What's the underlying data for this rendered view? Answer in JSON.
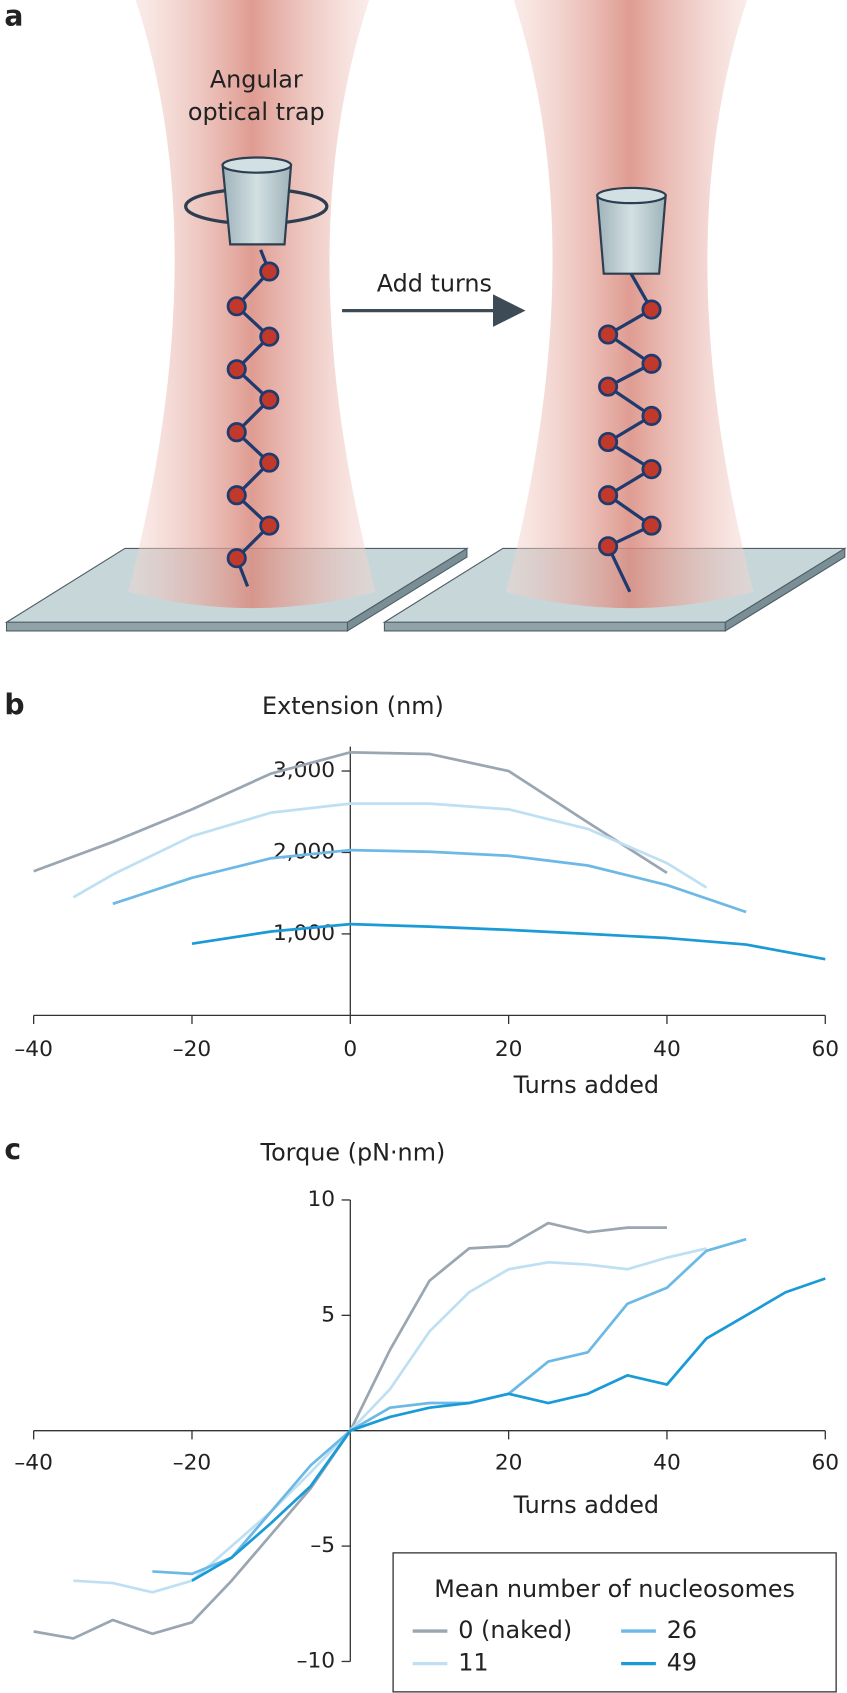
{
  "panel_labels": [
    "a",
    "b",
    "c"
  ],
  "illustration": {
    "trap_label": [
      "Angular",
      "optical trap"
    ],
    "arrow_label": "Add turns"
  },
  "chart_data": [
    {
      "type": "line",
      "ylabel": "Extension (nm)",
      "xlabel": "Turns added",
      "xlim": [
        -40,
        60
      ],
      "xticks": [
        {
          "value": -40,
          "label": "–40"
        },
        {
          "value": -20,
          "label": "–20"
        },
        0,
        20,
        40,
        60
      ],
      "ylim": [
        0,
        3300
      ],
      "yticks": [
        {
          "value": 1000,
          "label": "1,000"
        },
        {
          "value": 2000,
          "label": "2,000"
        },
        {
          "value": 3000,
          "label": "3,000"
        }
      ],
      "series": [
        {
          "color": "#9aa6b1",
          "x": [
            -40,
            -30,
            -20,
            -10,
            0,
            10,
            20,
            30,
            40
          ],
          "values": [
            1770,
            2130,
            2530,
            2970,
            3230,
            3210,
            3000,
            2370,
            1750
          ]
        },
        {
          "color": "#bfe0f3",
          "x": [
            -35,
            -30,
            -20,
            -10,
            0,
            10,
            20,
            30,
            40,
            45
          ],
          "values": [
            1450,
            1730,
            2200,
            2490,
            2600,
            2600,
            2530,
            2290,
            1870,
            1570
          ]
        },
        {
          "color": "#6cb9e5",
          "x": [
            -30,
            -20,
            -10,
            0,
            10,
            20,
            30,
            40,
            50
          ],
          "values": [
            1370,
            1690,
            1930,
            2030,
            2010,
            1960,
            1840,
            1600,
            1270
          ]
        },
        {
          "color": "#1a9ad6",
          "x": [
            -20,
            -10,
            0,
            10,
            20,
            30,
            40,
            50,
            60
          ],
          "values": [
            880,
            1030,
            1120,
            1090,
            1050,
            1000,
            950,
            870,
            690
          ]
        }
      ]
    },
    {
      "type": "line",
      "ylabel": "Torque (pN·nm)",
      "xlabel": "Turns added",
      "xlim": [
        -40,
        60
      ],
      "xticks": [
        {
          "value": -40,
          "label": "–40"
        },
        {
          "value": -20,
          "label": "–20"
        },
        20,
        40,
        60
      ],
      "ylim": [
        -10,
        10
      ],
      "yticks": [
        {
          "value": -10,
          "label": "–10"
        },
        {
          "value": -5,
          "label": "–5"
        },
        5,
        10
      ],
      "legend_title": "Mean number of nucleosomes",
      "legend": "lower right",
      "series": [
        {
          "name": "0 (naked)",
          "color": "#9aa6b1",
          "x": [
            -40,
            -35,
            -30,
            -25,
            -20,
            -15,
            -10,
            -5,
            0,
            5,
            10,
            15,
            20,
            25,
            30,
            35,
            40
          ],
          "values": [
            -8.7,
            -9.0,
            -8.2,
            -8.8,
            -8.3,
            -6.5,
            -4.5,
            -2.5,
            0,
            3.5,
            6.5,
            7.9,
            8.0,
            9.0,
            8.6,
            8.8,
            8.8
          ]
        },
        {
          "name": "11",
          "color": "#bfe0f3",
          "x": [
            -35,
            -30,
            -25,
            -20,
            -15,
            -10,
            -5,
            0,
            5,
            10,
            15,
            20,
            25,
            30,
            35,
            40,
            45
          ],
          "values": [
            -6.5,
            -6.6,
            -7.0,
            -6.5,
            -5.0,
            -3.5,
            -1.8,
            0,
            1.8,
            4.3,
            6.0,
            7.0,
            7.3,
            7.2,
            7.0,
            7.5,
            7.9
          ]
        },
        {
          "name": "26",
          "color": "#6cb9e5",
          "x": [
            -25,
            -20,
            -15,
            -10,
            -5,
            0,
            5,
            10,
            15,
            20,
            25,
            30,
            35,
            40,
            45,
            50
          ],
          "values": [
            -6.1,
            -6.2,
            -5.5,
            -3.5,
            -1.5,
            0,
            1.0,
            1.2,
            1.2,
            1.6,
            3.0,
            3.4,
            5.5,
            6.2,
            7.8,
            8.3
          ]
        },
        {
          "name": "49",
          "color": "#1a9ad6",
          "x": [
            -20,
            -15,
            -10,
            -5,
            0,
            5,
            10,
            15,
            20,
            25,
            30,
            35,
            40,
            45,
            50,
            55,
            60
          ],
          "values": [
            -6.5,
            -5.5,
            -4.0,
            -2.4,
            0,
            0.6,
            1.0,
            1.2,
            1.6,
            1.2,
            1.6,
            2.4,
            2.0,
            4.0,
            5.0,
            6.0,
            6.6
          ]
        }
      ]
    }
  ]
}
